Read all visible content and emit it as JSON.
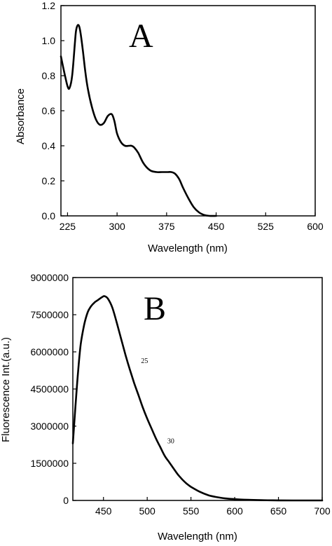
{
  "chart_data": [
    {
      "panel": "A",
      "type": "line",
      "xlabel": "Wavelength (nm)",
      "ylabel": "Absorbance",
      "xlim": [
        215,
        600
      ],
      "ylim": [
        0.0,
        1.2
      ],
      "xticks": [
        225,
        300,
        375,
        450,
        525,
        600
      ],
      "xtick_labels": [
        "225",
        "300",
        "375",
        "450",
        "525",
        "600"
      ],
      "yticks": [
        0.0,
        0.2,
        0.4,
        0.6,
        0.8,
        1.0,
        1.2
      ],
      "ytick_labels": [
        "0.0",
        "0.2",
        "0.4",
        "0.6",
        "0.8",
        "1.0",
        "1.2"
      ],
      "series": [
        {
          "x": [
            215,
            220,
            225,
            228,
            232,
            236,
            238,
            241,
            244,
            248,
            252,
            256,
            262,
            268,
            274,
            280,
            286,
            292,
            296,
            300,
            306,
            312,
            318,
            322,
            326,
            332,
            340,
            350,
            360,
            368,
            376,
            382,
            388,
            394,
            400,
            408,
            416,
            424,
            432,
            440,
            450
          ],
          "y": [
            0.91,
            0.82,
            0.74,
            0.73,
            0.8,
            0.98,
            1.06,
            1.09,
            1.06,
            0.95,
            0.82,
            0.72,
            0.62,
            0.55,
            0.52,
            0.53,
            0.57,
            0.58,
            0.54,
            0.47,
            0.42,
            0.4,
            0.4,
            0.4,
            0.39,
            0.36,
            0.3,
            0.26,
            0.25,
            0.25,
            0.25,
            0.25,
            0.24,
            0.21,
            0.16,
            0.1,
            0.05,
            0.02,
            0.005,
            0.0,
            0.0
          ]
        }
      ]
    },
    {
      "panel": "B",
      "type": "line",
      "xlabel": "Wavelength (nm)",
      "ylabel": "Fluorescence Int.(a.u.)",
      "xlim": [
        415,
        700
      ],
      "ylim": [
        0,
        9000000
      ],
      "xticks": [
        450,
        500,
        550,
        600,
        650,
        700
      ],
      "xtick_labels": [
        "450",
        "500",
        "550",
        "600",
        "650",
        "700"
      ],
      "yticks": [
        0,
        1500000,
        3000000,
        4500000,
        6000000,
        7500000,
        9000000
      ],
      "ytick_labels": [
        "0",
        "1500000",
        "3000000",
        "4500000",
        "6000000",
        "7500000",
        "9000000"
      ],
      "annotations": [
        {
          "text": "25",
          "x": 493,
          "y": 5550000
        },
        {
          "text": "30",
          "x": 523,
          "y": 2300000
        }
      ],
      "series": [
        {
          "x": [
            415,
            418,
            421,
            424,
            428,
            432,
            436,
            440,
            444,
            448,
            451,
            455,
            460,
            465,
            470,
            475,
            480,
            485,
            490,
            495,
            500,
            505,
            510,
            515,
            520,
            525,
            530,
            535,
            540,
            545,
            550,
            560,
            570,
            580,
            590,
            600,
            615,
            630,
            650,
            675,
            700
          ],
          "y": [
            2300000,
            3800000,
            5200000,
            6300000,
            7100000,
            7600000,
            7850000,
            8000000,
            8100000,
            8200000,
            8250000,
            8150000,
            7800000,
            7200000,
            6550000,
            5900000,
            5300000,
            4750000,
            4250000,
            3750000,
            3300000,
            2900000,
            2500000,
            2150000,
            1800000,
            1550000,
            1300000,
            1050000,
            850000,
            680000,
            550000,
            350000,
            210000,
            130000,
            80000,
            50000,
            25000,
            10000,
            3000,
            0,
            0
          ]
        }
      ]
    }
  ],
  "panel_letters": {
    "a": "A",
    "b": "B"
  },
  "annotations_b": {
    "label_25": "25",
    "label_30": "30"
  }
}
